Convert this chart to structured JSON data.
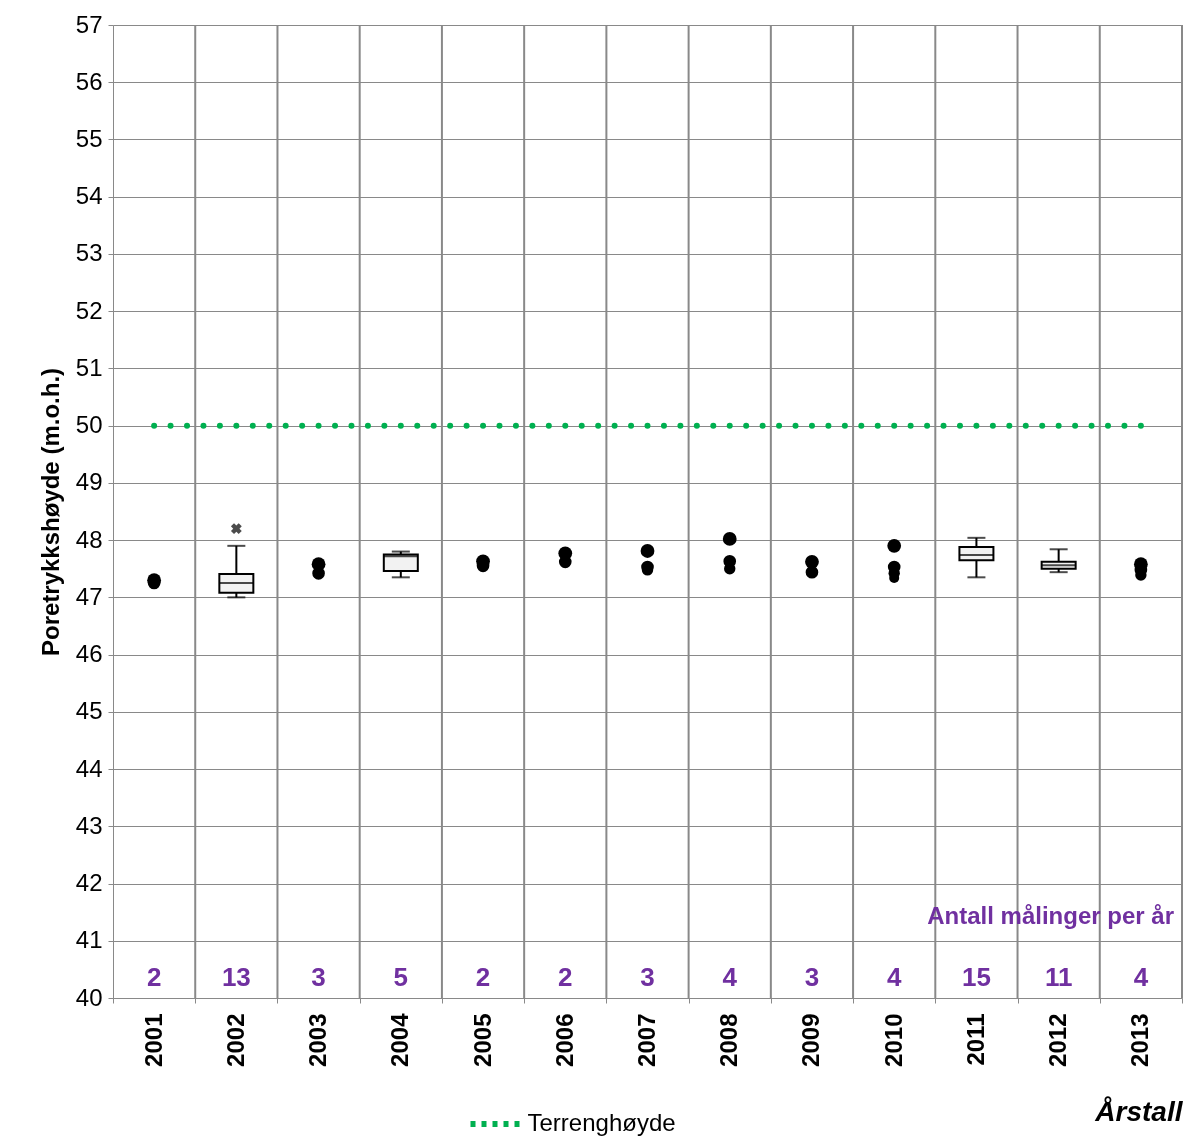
{
  "chart_data": {
    "type": "box",
    "ylabel": "Poretrykkshøyde (m.o.h.)",
    "xlabel": "Årstall",
    "categories": [
      "2001",
      "2002",
      "2003",
      "2004",
      "2005",
      "2006",
      "2007",
      "2008",
      "2009",
      "2010",
      "2011",
      "2012",
      "2013"
    ],
    "ylim": [
      40,
      57
    ],
    "yticks": [
      40,
      41,
      42,
      43,
      44,
      45,
      46,
      47,
      48,
      49,
      50,
      51,
      52,
      53,
      54,
      55,
      56,
      57
    ],
    "grid": true,
    "legend": "bottom",
    "series": [
      {
        "color": "#000000",
        "boxes": [
          null,
          {
            "low": 47.0,
            "q1": 47.08,
            "median": 47.25,
            "q3": 47.41,
            "high": 47.9,
            "outliers": [
              48.2
            ]
          },
          null,
          {
            "low": 47.35,
            "q1": 47.46,
            "median": 47.72,
            "q3": 47.75,
            "high": 47.8
          },
          null,
          null,
          null,
          null,
          null,
          null,
          {
            "low": 47.35,
            "q1": 47.65,
            "median": 47.74,
            "q3": 47.88,
            "high": 48.04
          },
          {
            "low": 47.44,
            "q1": 47.5,
            "median": 47.56,
            "q3": 47.62,
            "high": 47.84
          },
          null
        ]
      },
      {
        "type": "scatter",
        "color": "#000000",
        "marker": "circle",
        "values": [
          47.3,
          null,
          47.58,
          null,
          47.63,
          47.77,
          47.81,
          48.02,
          47.62,
          47.9,
          null,
          null,
          47.58
        ]
      },
      {
        "type": "scatter",
        "color": "#000000",
        "marker": "circle",
        "values": [
          47.25,
          null,
          47.42,
          null,
          47.55,
          47.62,
          47.53,
          47.63,
          47.44,
          47.53,
          null,
          null,
          47.48
        ]
      },
      {
        "type": "scatter",
        "color": "#000000",
        "marker": "circle",
        "values": [
          null,
          null,
          null,
          null,
          null,
          null,
          47.48,
          47.5,
          null,
          47.42,
          null,
          null,
          47.39
        ]
      },
      {
        "type": "scatter",
        "color": "#000000",
        "marker": "circle",
        "values": [
          null,
          null,
          null,
          null,
          null,
          null,
          null,
          null,
          null,
          47.34,
          null,
          null,
          null
        ]
      },
      {
        "type": "line",
        "name": "Terrenghøyde",
        "color": "#00b050",
        "line_style": "dotted",
        "marker": "none",
        "values": [
          50,
          50,
          50,
          50,
          50,
          50,
          50,
          50,
          50,
          50,
          50,
          50,
          50
        ]
      }
    ],
    "annotations": [
      "2",
      "13",
      "3",
      "5",
      "2",
      "2",
      "3",
      "4",
      "3",
      "4",
      "15",
      "11",
      "4",
      "Antall målinger per år"
    ]
  }
}
